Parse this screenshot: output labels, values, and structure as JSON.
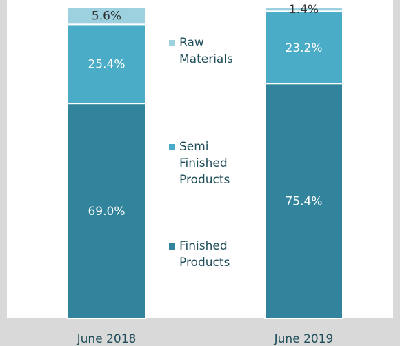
{
  "chart_data": {
    "type": "stacked-bar",
    "categories": [
      "June 2018",
      "June 2019"
    ],
    "ylim": [
      0,
      100
    ],
    "series": [
      {
        "name": "Finished Products",
        "color": "#31849b",
        "label_color": "#ffffff",
        "values": [
          69.0,
          75.4
        ],
        "value_labels": [
          "69.0%",
          "75.4%"
        ]
      },
      {
        "name": "Semi Finished Products",
        "color": "#4aacc6",
        "label_color": "#ffffff",
        "values": [
          25.4,
          23.2
        ],
        "value_labels": [
          "25.4%",
          "23.2%"
        ]
      },
      {
        "name": "Raw Materials",
        "color": "#9dd1e0",
        "label_color": "#333333",
        "values": [
          5.6,
          1.4
        ],
        "value_labels": [
          "5.6%",
          "1.4%"
        ]
      }
    ]
  }
}
